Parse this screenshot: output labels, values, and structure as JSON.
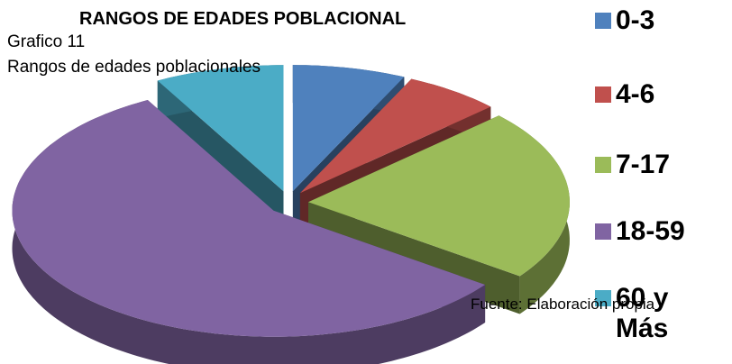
{
  "chart_data": {
    "type": "pie3d",
    "title": "RANGOS DE EDADES POBLACIONAL",
    "subtitle": "Grafico  11",
    "subtitle2": "Rangos de edades poblacionales",
    "source": "Fuente: Elaboración propia",
    "categories": [
      "0-3",
      "4-6",
      "7-17",
      "18-59",
      "60 y Más"
    ],
    "values": [
      7,
      6,
      22,
      57,
      8
    ],
    "colors": [
      "#4f81bd",
      "#c0504d",
      "#9bbb59",
      "#8064a2",
      "#4bacc6"
    ],
    "legend": "right"
  }
}
